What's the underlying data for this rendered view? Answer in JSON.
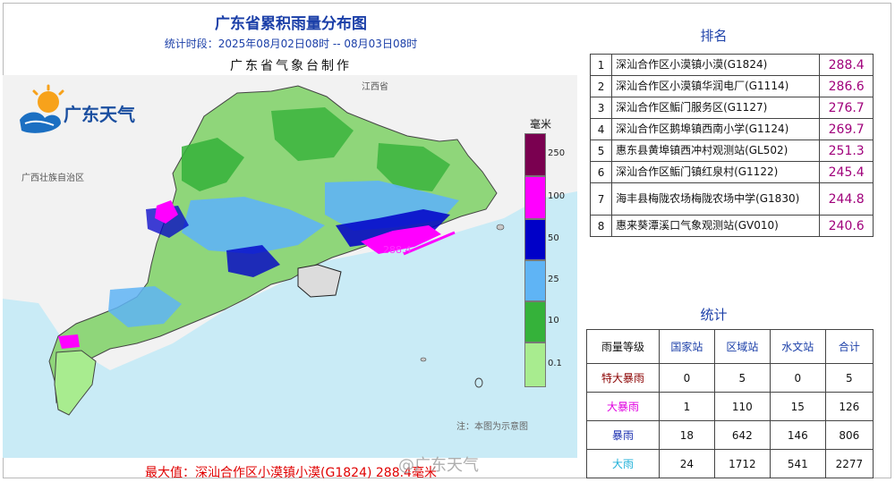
{
  "header": {
    "title": "广东省累积雨量分布图",
    "period": "统计时段：2025年08月02日08时  --  08月03日08时",
    "producer": "广东省气象台制作"
  },
  "logo": {
    "text": "广东天气"
  },
  "map": {
    "region_labels": {
      "jiangxi": "江西省",
      "guangxi": "广西壮族自治区"
    },
    "note": "注：本图为示意图",
    "max_marker": "288.4"
  },
  "legend": {
    "unit": "毫米",
    "levels": [
      {
        "label": "250",
        "color": "#7a0050"
      },
      {
        "label": "100",
        "color": "#ff00ff"
      },
      {
        "label": "50",
        "color": "#0000c8"
      },
      {
        "label": "25",
        "color": "#5fb4f5"
      },
      {
        "label": "10",
        "color": "#35b23a"
      },
      {
        "label": "0.1",
        "color": "#a8ec8f"
      }
    ]
  },
  "ranking": {
    "title": "排名",
    "rows": [
      {
        "rank": "1",
        "station": "深汕合作区小漠镇小漠(G1824)",
        "value": "288.4"
      },
      {
        "rank": "2",
        "station": "深汕合作区小漠镇华润电厂(G1114)",
        "value": "286.6"
      },
      {
        "rank": "3",
        "station": "深汕合作区鲘门服务区(G1127)",
        "value": "276.7"
      },
      {
        "rank": "4",
        "station": "深汕合作区鹅埠镇西南小学(G1124)",
        "value": "269.7"
      },
      {
        "rank": "5",
        "station": "惠东县黄埠镇西冲村观测站(GL502)",
        "value": "251.3"
      },
      {
        "rank": "6",
        "station": "深汕合作区鲘门镇红泉村(G1122)",
        "value": "245.4"
      },
      {
        "rank": "7",
        "station": "海丰县梅陇农场梅陇农场中学(G1830)",
        "value": "244.8"
      },
      {
        "rank": "8",
        "station": "惠来葵潭溪口气象观测站(GV010)",
        "value": "240.6"
      }
    ]
  },
  "statistics": {
    "title": "统计",
    "headers": [
      "雨量等级",
      "国家站",
      "区域站",
      "水文站",
      "合计"
    ],
    "rows": [
      {
        "level": "特大暴雨",
        "color": "#8b0000",
        "values": [
          "0",
          "5",
          "0",
          "5"
        ]
      },
      {
        "level": "大暴雨",
        "color": "#e000e0",
        "values": [
          "1",
          "110",
          "15",
          "126"
        ]
      },
      {
        "level": "暴雨",
        "color": "#1a2fb0",
        "values": [
          "18",
          "642",
          "146",
          "806"
        ]
      },
      {
        "level": "大雨",
        "color": "#1fb0d8",
        "values": [
          "24",
          "1712",
          "541",
          "2277"
        ]
      }
    ]
  },
  "footer": {
    "max_value": "最大值：深汕合作区小漠镇小漠(G1824) 288.4毫米",
    "watermark": "@广东天气"
  }
}
